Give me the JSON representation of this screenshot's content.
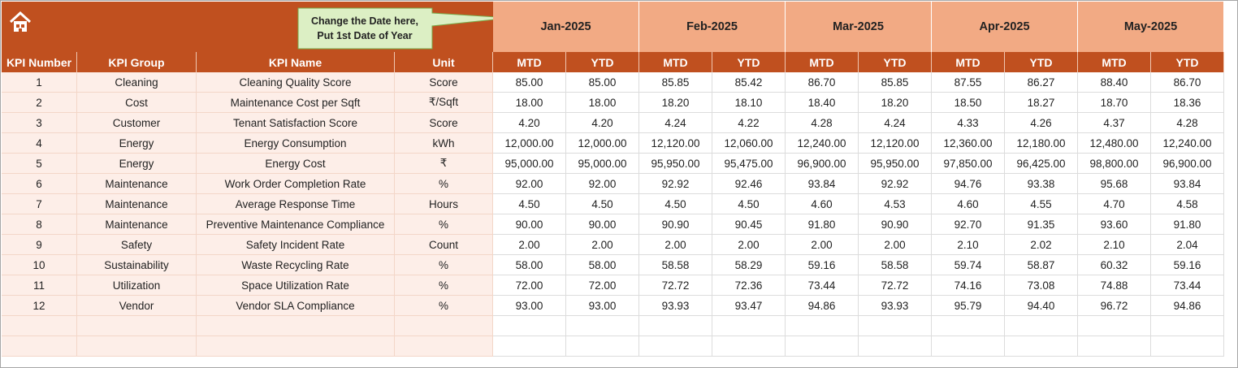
{
  "header": {
    "note": [
      "Change the Date here,",
      "Put 1st Date of Year"
    ],
    "months": [
      "Jan-2025",
      "Feb-2025",
      "Mar-2025",
      "Apr-2025",
      "May-2025"
    ]
  },
  "table": {
    "columns": [
      "KPI Number",
      "KPI Group",
      "KPI Name",
      "Unit",
      "MTD",
      "YTD",
      "MTD",
      "YTD",
      "MTD",
      "YTD",
      "MTD",
      "YTD",
      "MTD",
      "YTD"
    ],
    "rows": [
      [
        1,
        "Cleaning",
        "Cleaning Quality Score",
        "Score",
        "85.00",
        "85.00",
        "85.85",
        "85.42",
        "86.70",
        "85.85",
        "87.55",
        "86.27",
        "88.40",
        "86.70"
      ],
      [
        2,
        "Cost",
        "Maintenance Cost per Sqft",
        "₹/Sqft",
        "18.00",
        "18.00",
        "18.20",
        "18.10",
        "18.40",
        "18.20",
        "18.50",
        "18.27",
        "18.70",
        "18.36"
      ],
      [
        3,
        "Customer",
        "Tenant Satisfaction Score",
        "Score",
        "4.20",
        "4.20",
        "4.24",
        "4.22",
        "4.28",
        "4.24",
        "4.33",
        "4.26",
        "4.37",
        "4.28"
      ],
      [
        4,
        "Energy",
        "Energy Consumption",
        "kWh",
        "12,000.00",
        "12,000.00",
        "12,120.00",
        "12,060.00",
        "12,240.00",
        "12,120.00",
        "12,360.00",
        "12,180.00",
        "12,480.00",
        "12,240.00"
      ],
      [
        5,
        "Energy",
        "Energy Cost",
        "₹",
        "95,000.00",
        "95,000.00",
        "95,950.00",
        "95,475.00",
        "96,900.00",
        "95,950.00",
        "97,850.00",
        "96,425.00",
        "98,800.00",
        "96,900.00"
      ],
      [
        6,
        "Maintenance",
        "Work Order Completion Rate",
        "%",
        "92.00",
        "92.00",
        "92.92",
        "92.46",
        "93.84",
        "92.92",
        "94.76",
        "93.38",
        "95.68",
        "93.84"
      ],
      [
        7,
        "Maintenance",
        "Average Response Time",
        "Hours",
        "4.50",
        "4.50",
        "4.50",
        "4.50",
        "4.60",
        "4.53",
        "4.60",
        "4.55",
        "4.70",
        "4.58"
      ],
      [
        8,
        "Maintenance",
        "Preventive Maintenance Compliance",
        "%",
        "90.00",
        "90.00",
        "90.90",
        "90.45",
        "91.80",
        "90.90",
        "92.70",
        "91.35",
        "93.60",
        "91.80"
      ],
      [
        9,
        "Safety",
        "Safety Incident Rate",
        "Count",
        "2.00",
        "2.00",
        "2.00",
        "2.00",
        "2.00",
        "2.00",
        "2.10",
        "2.02",
        "2.10",
        "2.04"
      ],
      [
        10,
        "Sustainability",
        "Waste Recycling Rate",
        "%",
        "58.00",
        "58.00",
        "58.58",
        "58.29",
        "59.16",
        "58.58",
        "59.74",
        "58.87",
        "60.32",
        "59.16"
      ],
      [
        11,
        "Utilization",
        "Space Utilization Rate",
        "%",
        "72.00",
        "72.00",
        "72.72",
        "72.36",
        "73.44",
        "72.72",
        "74.16",
        "73.08",
        "74.88",
        "73.44"
      ],
      [
        12,
        "Vendor",
        "Vendor SLA Compliance",
        "%",
        "93.00",
        "93.00",
        "93.93",
        "93.47",
        "94.86",
        "93.93",
        "95.79",
        "94.40",
        "96.72",
        "94.86"
      ]
    ]
  }
}
